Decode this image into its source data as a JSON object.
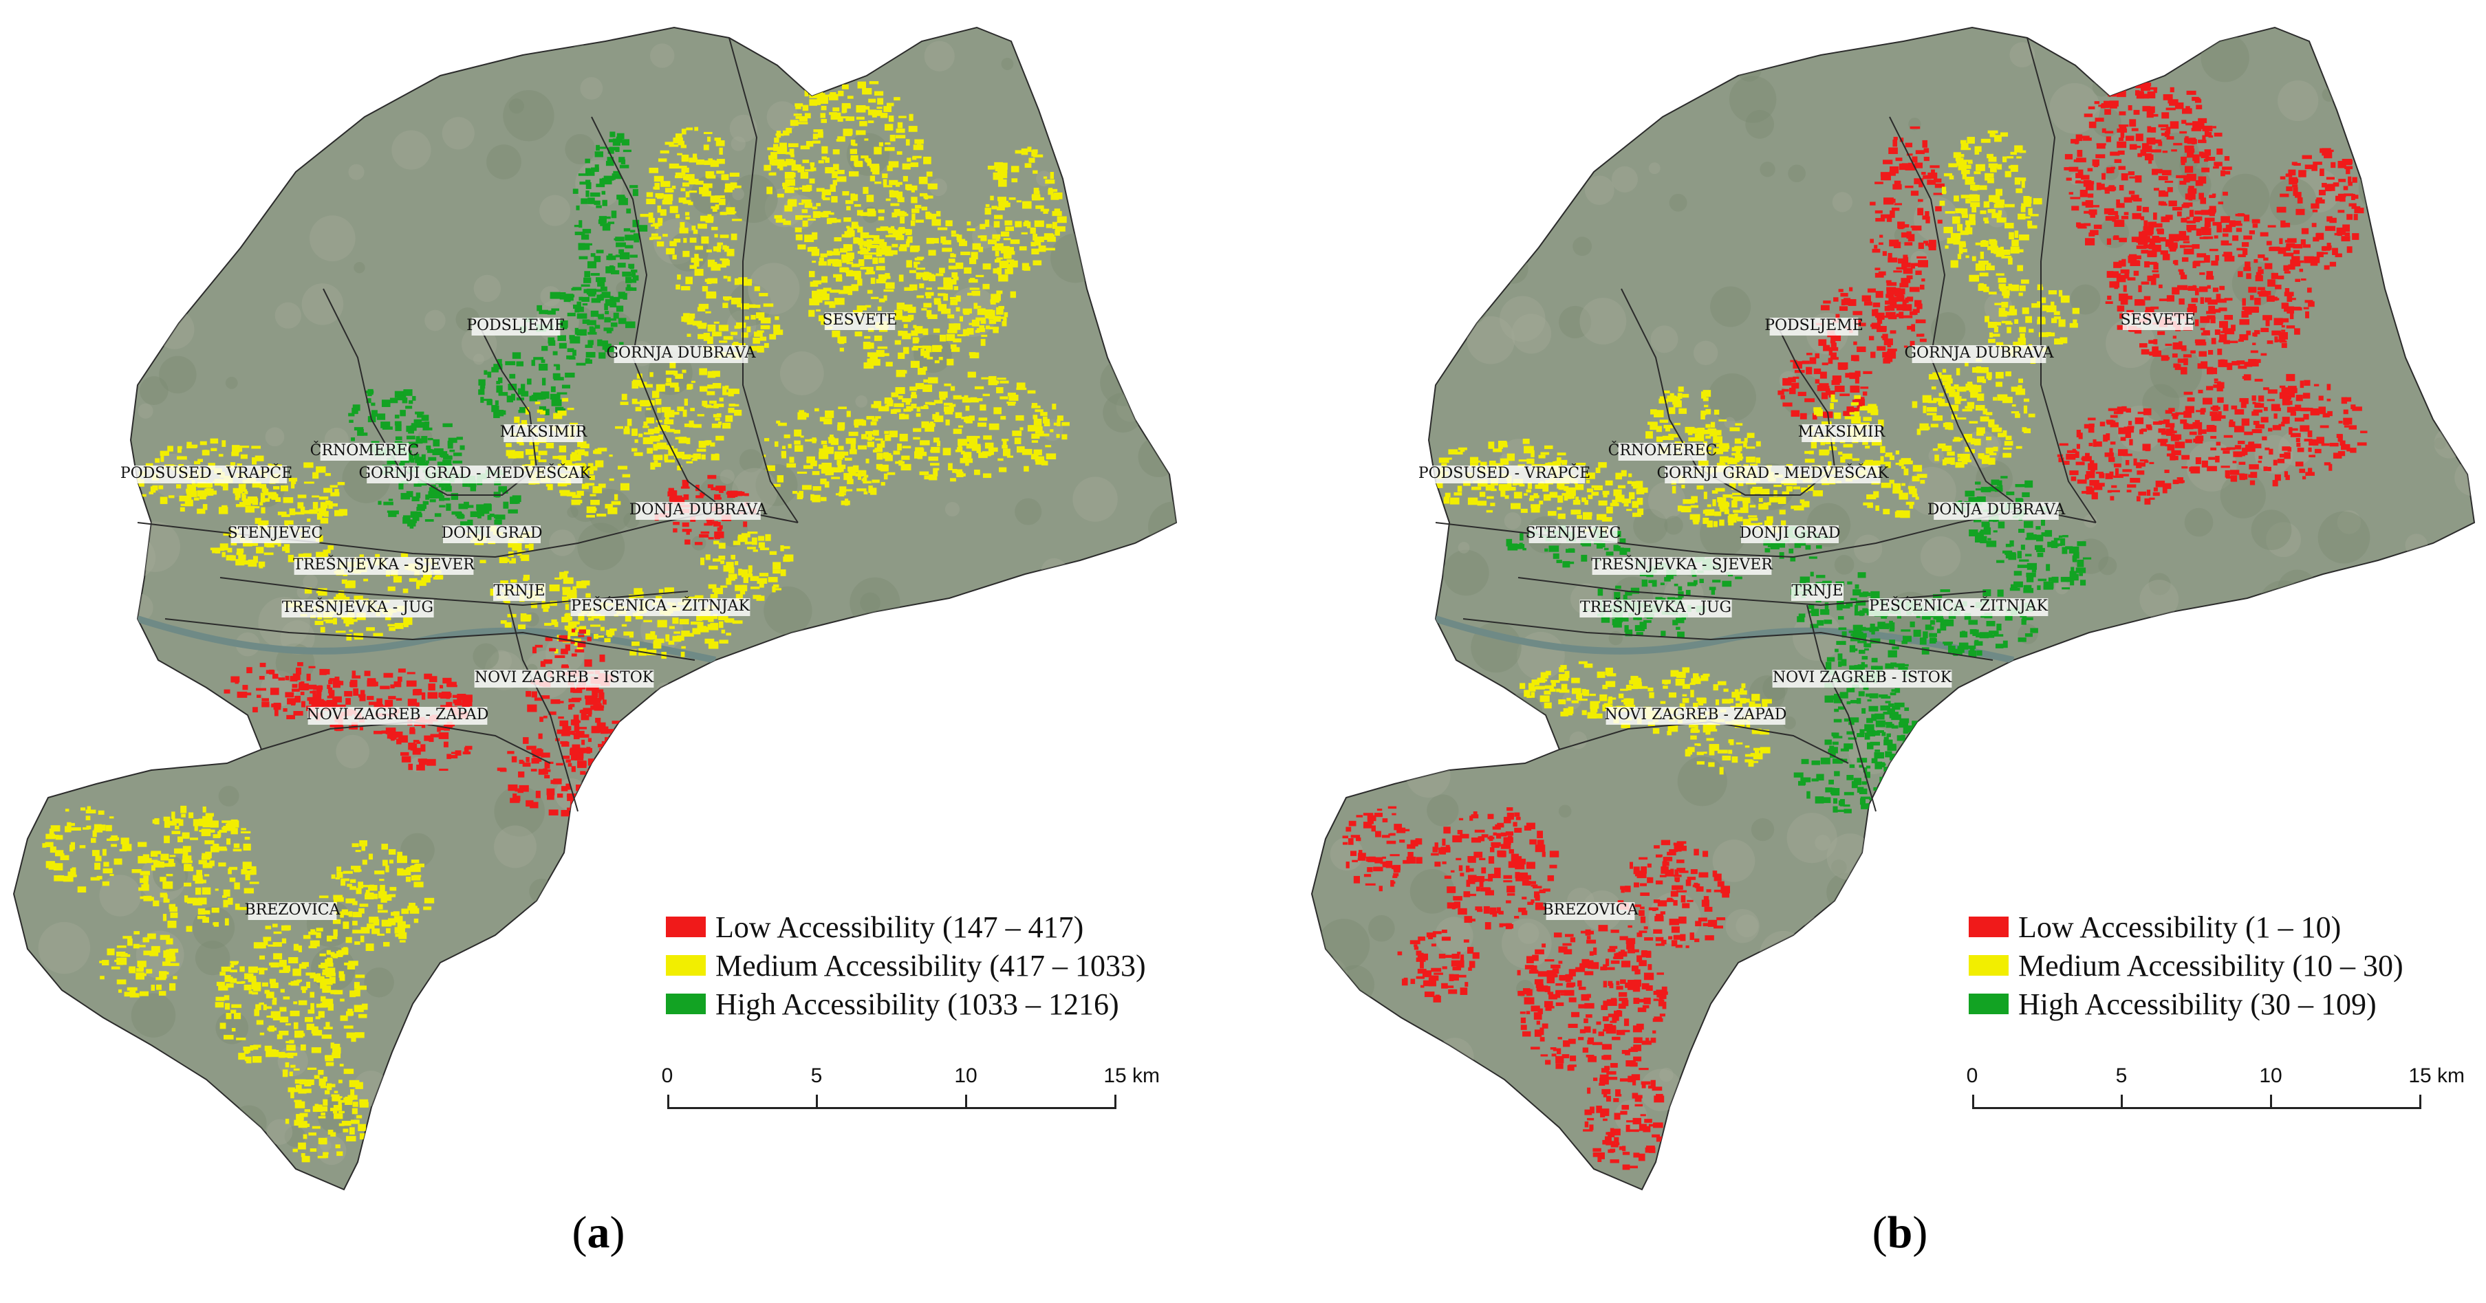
{
  "colors": {
    "low": "#f01a1a",
    "medium": "#f2ee00",
    "high": "#12a323",
    "terrain": "#8e9a86",
    "boundary": "#2b2b2b"
  },
  "district_labels": [
    "PODSLJEME",
    "GORNJA DUBRAVA",
    "SESVETE",
    "ČRNOMEREC",
    "MAKSIMIR",
    "PODSUSED - VRAPČE",
    "GORNJI GRAD - MEDVEŠČAK",
    "DONJA DUBRAVA",
    "STENJEVEC",
    "DONJI GRAD",
    "TREŠNJEVKA - SJEVER",
    "TRNJE",
    "TREŠNJEVKA - JUG",
    "PEŠĆENICA - ŽITNJAK",
    "NOVI ZAGREB - ISTOK",
    "NOVI ZAGREB - ZAPAD",
    "BREZOVICA"
  ],
  "panels": [
    {
      "letter": "a",
      "legend": [
        {
          "label": "Low Accessibility (147 – 417)",
          "color": "#f01a1a"
        },
        {
          "label": "Medium Accessibility (417 – 1033)",
          "color": "#f2ee00"
        },
        {
          "label": "High Accessibility (1033 – 1216)",
          "color": "#12a323"
        }
      ],
      "scale": {
        "ticks": [
          "0",
          "5",
          "10",
          "15"
        ],
        "unit": "km"
      },
      "district_class": {
        "PODSLJEME": "high",
        "GORNJA DUBRAVA": "medium",
        "SESVETE": "medium",
        "ČRNOMEREC": "high",
        "MAKSIMIR": "medium",
        "PODSUSED - VRAPČE": "medium",
        "GORNJI GRAD - MEDVEŠČAK": "high",
        "DONJA DUBRAVA": "low",
        "STENJEVEC": "medium",
        "DONJI GRAD": "medium",
        "TREŠNJEVKA - SJEVER": "medium",
        "TRNJE": "medium",
        "TREŠNJEVKA - JUG": "medium",
        "PEŠĆENICA - ŽITNJAK": "medium",
        "NOVI ZAGREB - ISTOK": "low",
        "NOVI ZAGREB - ZAPAD": "low",
        "BREZOVICA": "medium"
      }
    },
    {
      "letter": "b",
      "legend": [
        {
          "label": "Low Accessibility (1 – 10)",
          "color": "#f01a1a"
        },
        {
          "label": "Medium Accessibility (10 – 30)",
          "color": "#f2ee00"
        },
        {
          "label": "High Accessibility (30 – 109)",
          "color": "#12a323"
        }
      ],
      "scale": {
        "ticks": [
          "0",
          "5",
          "10",
          "15"
        ],
        "unit": "km"
      },
      "district_class": {
        "PODSLJEME": "low",
        "GORNJA DUBRAVA": "medium",
        "SESVETE": "low",
        "ČRNOMEREC": "medium",
        "MAKSIMIR": "medium",
        "PODSUSED - VRAPČE": "medium",
        "GORNJI GRAD - MEDVEŠČAK": "medium",
        "DONJA DUBRAVA": "high",
        "STENJEVEC": "high",
        "DONJI GRAD": "high",
        "TREŠNJEVKA - SJEVER": "high",
        "TRNJE": "high",
        "TREŠNJEVKA - JUG": "high",
        "PEŠĆENICA - ŽITNJAK": "high",
        "NOVI ZAGREB - ISTOK": "high",
        "NOVI ZAGREB - ZAPAD": "medium",
        "BREZOVICA": "low"
      }
    }
  ]
}
